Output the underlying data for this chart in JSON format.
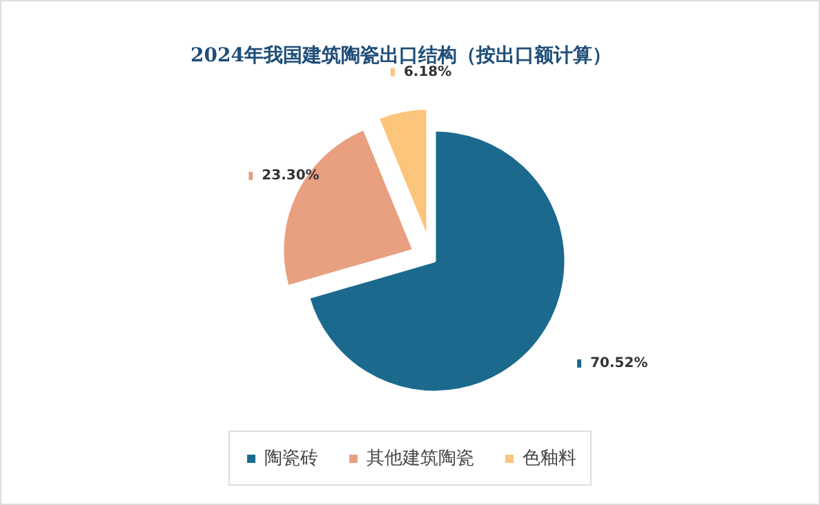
{
  "chart_data": {
    "type": "pie",
    "title": "2024年我国建筑陶瓷出口结构（按出口额计算）",
    "categories": [
      "陶瓷砖",
      "其他建筑陶瓷",
      "色釉料"
    ],
    "values": [
      70.52,
      23.3,
      6.18
    ],
    "colors": [
      "#1b6a8e",
      "#e8a080",
      "#fcc57c"
    ],
    "value_labels": [
      "70.52%",
      "23.30%",
      "6.18%"
    ],
    "legend": "bottom"
  }
}
